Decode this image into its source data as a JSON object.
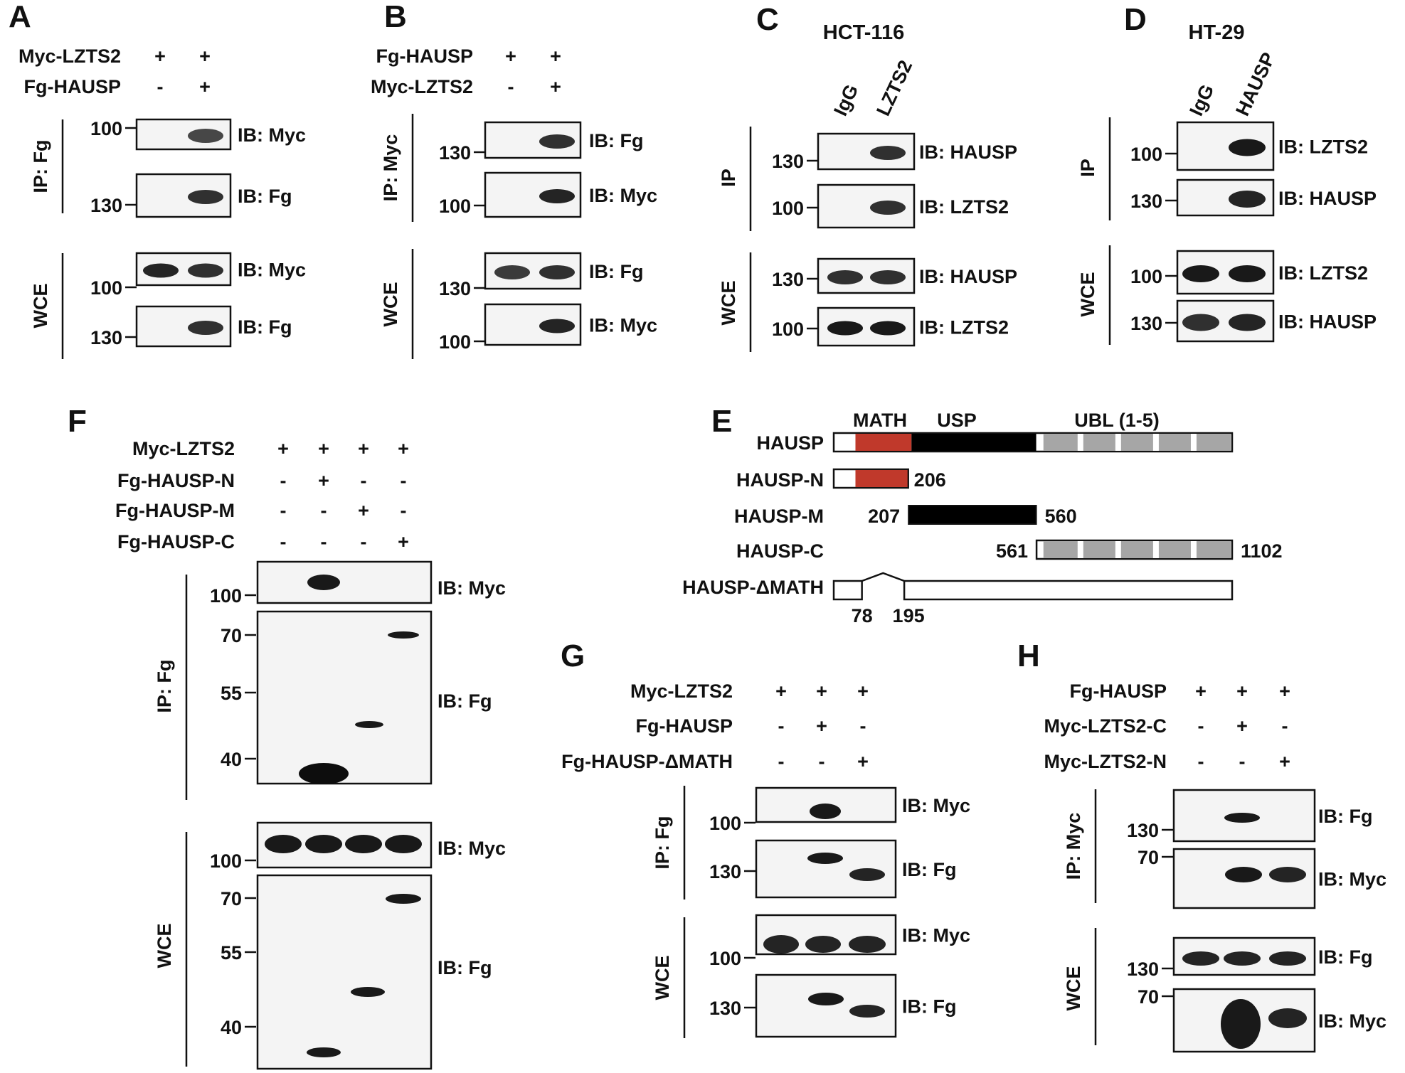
{
  "colors": {
    "math": "#c0392b",
    "usp": "#000000",
    "ubl": "#a6a6a6",
    "ubl_label": "#999999",
    "blot_bg": "#f4f4f4",
    "band": "#0d0d0d"
  },
  "panels": {
    "A": {
      "letter": "A",
      "conditions": [
        {
          "name": "Myc-LZTS2",
          "marks": [
            "+",
            "+"
          ]
        },
        {
          "name": "Fg-HAUSP",
          "marks": [
            "-",
            "+"
          ]
        }
      ],
      "blots": [
        {
          "label": "IB: Myc",
          "marker": "100",
          "bands": [
            0,
            0.75
          ]
        },
        {
          "label": "IB: Fg",
          "marker": "130",
          "bands": [
            0,
            0.85
          ]
        },
        {
          "label": "IB: Myc",
          "marker": "100",
          "bands": [
            0.9,
            0.85
          ]
        },
        {
          "label": "IB: Fg",
          "marker": "130",
          "bands": [
            0,
            0.85
          ]
        }
      ],
      "groups": [
        "IP: Fg",
        "WCE"
      ]
    },
    "B": {
      "letter": "B",
      "conditions": [
        {
          "name": "Fg-HAUSP",
          "marks": [
            "+",
            "+"
          ]
        },
        {
          "name": "Myc-LZTS2",
          "marks": [
            "-",
            "+"
          ]
        }
      ],
      "blots": [
        {
          "label": "IB: Fg",
          "marker": "130",
          "bands": [
            0,
            0.85
          ]
        },
        {
          "label": "IB: Myc",
          "marker": "100",
          "bands": [
            0,
            0.9
          ]
        },
        {
          "label": "IB: Fg",
          "marker": "130",
          "bands": [
            0.8,
            0.85
          ]
        },
        {
          "label": "IB: Myc",
          "marker": "100",
          "bands": [
            0,
            0.9
          ]
        }
      ],
      "groups": [
        "IP: Myc",
        "WCE"
      ]
    },
    "C": {
      "letter": "C",
      "cell_line": "HCT-116",
      "lanes": [
        "IgG",
        "LZTS2"
      ],
      "blots": [
        {
          "label": "IB: HAUSP",
          "marker": "130",
          "bands": [
            0,
            0.85
          ]
        },
        {
          "label": "IB: LZTS2",
          "marker": "100",
          "bands": [
            0,
            0.85
          ]
        },
        {
          "label": "IB: HAUSP",
          "marker": "130",
          "bands": [
            0.85,
            0.85
          ]
        },
        {
          "label": "IB: LZTS2",
          "marker": "100",
          "bands": [
            0.95,
            0.95
          ]
        }
      ],
      "groups": [
        "IP",
        "WCE"
      ]
    },
    "D": {
      "letter": "D",
      "cell_line": "HT-29",
      "lanes": [
        "IgG",
        "HAUSP"
      ],
      "blots": [
        {
          "label": "IB: LZTS2",
          "marker": "100",
          "bands": [
            0,
            0.95
          ]
        },
        {
          "label": "IB: HAUSP",
          "marker": "130",
          "bands": [
            0,
            0.9
          ]
        },
        {
          "label": "IB: LZTS2",
          "marker": "100",
          "bands": [
            0.95,
            0.95
          ]
        },
        {
          "label": "IB: HAUSP",
          "marker": "130",
          "bands": [
            0.85,
            0.9
          ]
        }
      ],
      "groups": [
        "IP",
        "WCE"
      ]
    },
    "E": {
      "letter": "E",
      "domains": {
        "math": "MATH",
        "usp": "USP",
        "ubl": "UBL (1-5)"
      },
      "constructs": [
        {
          "name": "HAUSP"
        },
        {
          "name": "HAUSP-N",
          "end": "206"
        },
        {
          "name": "HAUSP-M",
          "start": "207",
          "end": "560"
        },
        {
          "name": "HAUSP-C",
          "start": "561",
          "end": "1102"
        },
        {
          "name": "HAUSP-ΔMATH",
          "gap_start": "78",
          "gap_end": "195"
        }
      ]
    },
    "F": {
      "letter": "F",
      "conditions": [
        {
          "name": "Myc-LZTS2",
          "marks": [
            "+",
            "+",
            "+",
            "+"
          ]
        },
        {
          "name": "Fg-HAUSP-N",
          "marks": [
            "-",
            "+",
            "-",
            "-"
          ]
        },
        {
          "name": "Fg-HAUSP-M",
          "marks": [
            "-",
            "-",
            "+",
            "-"
          ]
        },
        {
          "name": "Fg-HAUSP-C",
          "marks": [
            "-",
            "-",
            "-",
            "+"
          ]
        }
      ],
      "blots": [
        {
          "label": "IB: Myc",
          "markers": [
            "100"
          ]
        },
        {
          "label": "IB: Fg",
          "markers": [
            "70",
            "55",
            "40"
          ]
        },
        {
          "label": "IB: Myc",
          "markers": [
            "100"
          ]
        },
        {
          "label": "IB: Fg",
          "markers": [
            "70",
            "55",
            "40"
          ]
        }
      ],
      "groups": [
        "IP: Fg",
        "WCE"
      ]
    },
    "G": {
      "letter": "G",
      "conditions": [
        {
          "name": "Myc-LZTS2",
          "marks": [
            "+",
            "+",
            "+"
          ]
        },
        {
          "name": "Fg-HAUSP",
          "marks": [
            "-",
            "+",
            "-"
          ]
        },
        {
          "name": "Fg-HAUSP-ΔMATH",
          "marks": [
            "-",
            "-",
            "+"
          ]
        }
      ],
      "blots": [
        {
          "label": "IB: Myc",
          "marker": "100"
        },
        {
          "label": "IB: Fg",
          "marker": "130"
        },
        {
          "label": "IB: Myc",
          "marker": "100"
        },
        {
          "label": "IB: Fg",
          "marker": "130"
        }
      ],
      "groups": [
        "IP: Fg",
        "WCE"
      ]
    },
    "H": {
      "letter": "H",
      "conditions": [
        {
          "name": "Fg-HAUSP",
          "marks": [
            "+",
            "+",
            "+"
          ]
        },
        {
          "name": "Myc-LZTS2-C",
          "marks": [
            "-",
            "+",
            "-"
          ]
        },
        {
          "name": "Myc-LZTS2-N",
          "marks": [
            "-",
            "-",
            "+"
          ]
        }
      ],
      "blots": [
        {
          "label": "IB: Fg",
          "marker": "130"
        },
        {
          "label": "IB: Myc",
          "marker": "70"
        },
        {
          "label": "IB: Fg",
          "marker": "130"
        },
        {
          "label": "IB: Myc",
          "marker": "70"
        }
      ],
      "groups": [
        "IP: Myc",
        "WCE"
      ]
    }
  }
}
